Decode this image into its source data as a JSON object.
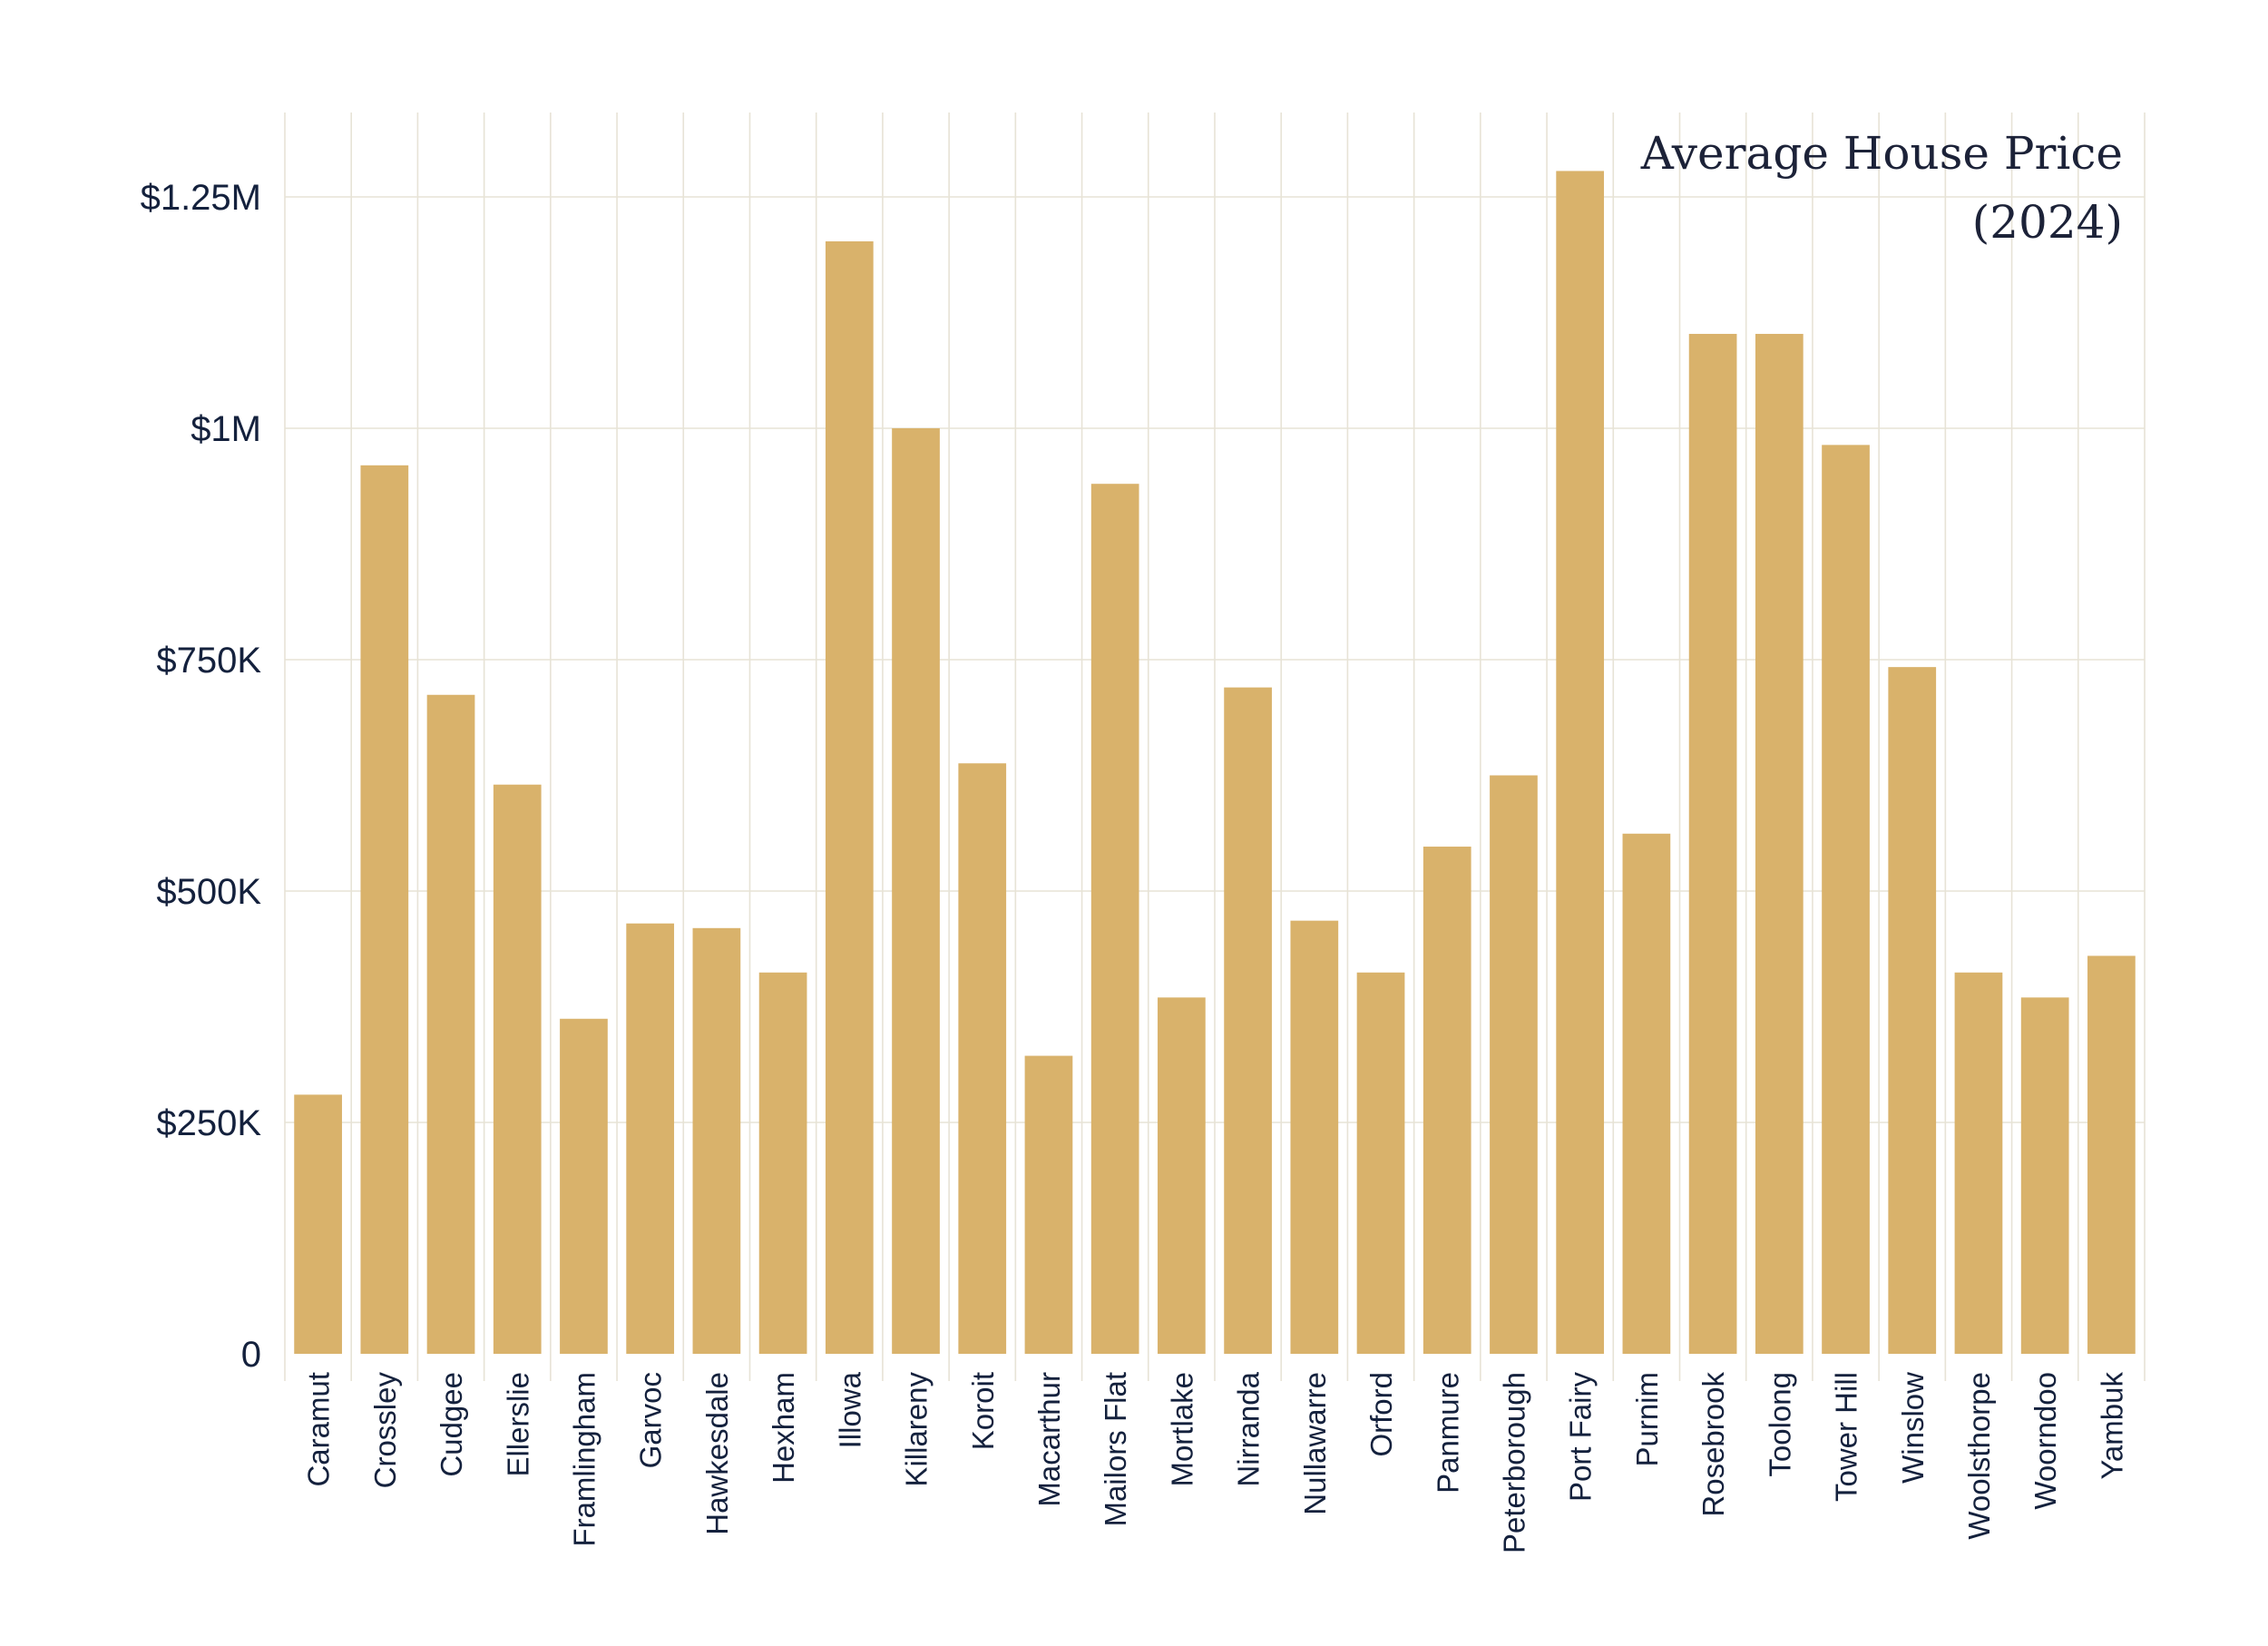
{
  "chart_data": {
    "type": "bar",
    "title": "Average House Price",
    "subtitle": "(2024)",
    "xlabel": "",
    "ylabel": "",
    "ylim": [
      0,
      1350000
    ],
    "yticks": [
      0,
      250000,
      500000,
      750000,
      1000000,
      1250000
    ],
    "ytick_labels": [
      "0",
      "$250K",
      "$500K",
      "$750K",
      "$1M",
      "$1.25M"
    ],
    "grid": true,
    "bar_color": "#d9b26b",
    "grid_color": "#e7e3d6",
    "text_color": "#14213d",
    "categories": [
      "Caramut",
      "Crossley",
      "Cudgee",
      "Ellerslie",
      "Framlingham",
      "Garvoc",
      "Hawkesdale",
      "Hexham",
      "Illowa",
      "Killareny",
      "Koroit",
      "Macarthur",
      "Mailors Flat",
      "Mortlake",
      "Nirranda",
      "Nullawarre",
      "Orford",
      "Panmure",
      "Peterborough",
      "Port Fairy",
      "Purnim",
      "Rosebrook",
      "Toolong",
      "Tower Hill",
      "Winslow",
      "Woolsthorpe",
      "Woorndoo",
      "Yambuk"
    ],
    "values": [
      280000,
      960000,
      712000,
      615000,
      362000,
      465000,
      460000,
      412000,
      1202000,
      1000000,
      638000,
      322000,
      940000,
      385000,
      720000,
      468000,
      412000,
      548000,
      625000,
      1278000,
      562000,
      1102000,
      1102000,
      982000,
      742000,
      412000,
      385000,
      430000
    ]
  }
}
